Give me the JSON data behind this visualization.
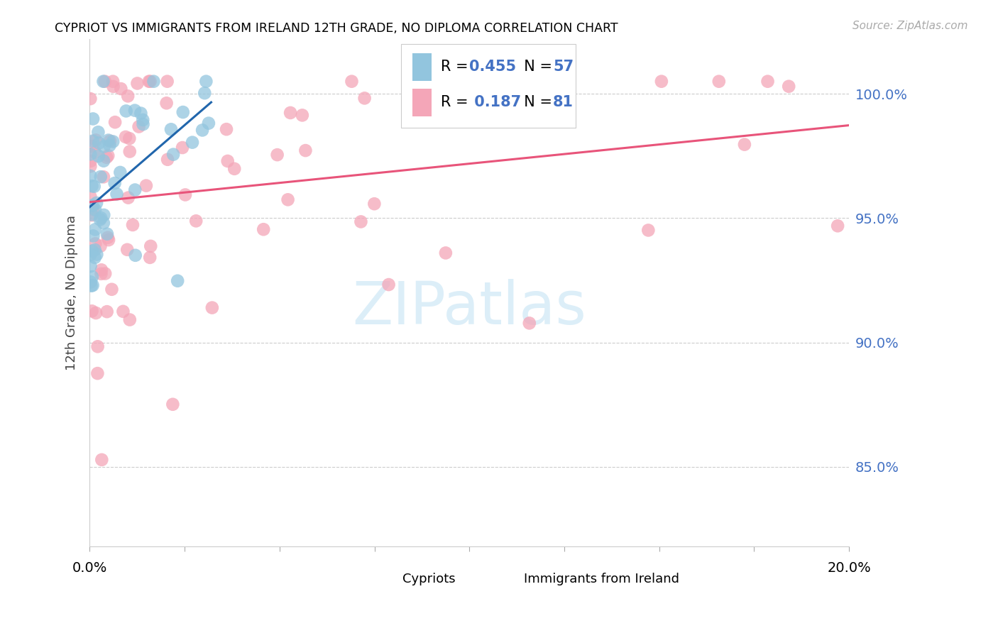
{
  "title": "CYPRIOT VS IMMIGRANTS FROM IRELAND 12TH GRADE, NO DIPLOMA CORRELATION CHART",
  "source": "Source: ZipAtlas.com",
  "ylabel": "12th Grade, No Diploma",
  "ytick_vals": [
    1.0,
    0.95,
    0.9,
    0.85
  ],
  "ytick_labels": [
    "100.0%",
    "95.0%",
    "90.0%",
    "85.0%"
  ],
  "xlim": [
    0.0,
    0.2
  ],
  "ylim": [
    0.818,
    1.022
  ],
  "watermark": "ZIPatlas",
  "legend_r1": "0.455",
  "legend_n1": "57",
  "legend_r2": "0.187",
  "legend_n2": "81",
  "blue_color": "#92c5de",
  "pink_color": "#f4a6b8",
  "blue_line_color": "#2166ac",
  "pink_line_color": "#e8547a",
  "background_color": "#ffffff",
  "grid_color": "#cccccc",
  "tick_color": "#4472c4",
  "watermark_color": "#dceef8"
}
